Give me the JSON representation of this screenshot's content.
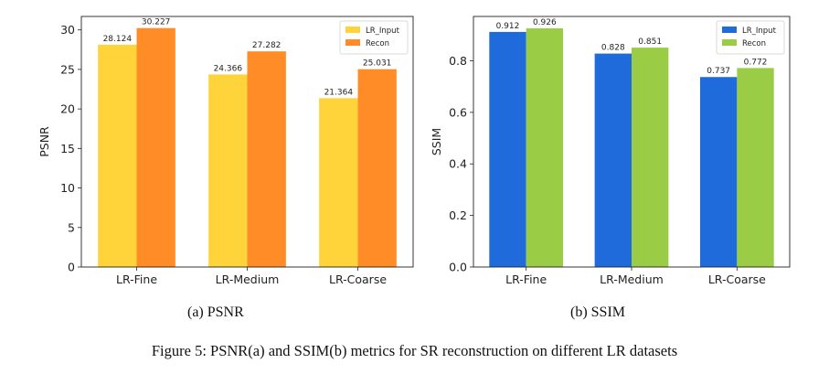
{
  "chart_data": [
    {
      "type": "bar",
      "categories": [
        "LR-Fine",
        "LR-Medium",
        "LR-Coarse"
      ],
      "series": [
        {
          "name": "LR_Input",
          "values": [
            28.124,
            24.366,
            21.364
          ],
          "labels": [
            "28.124",
            "24.366",
            "21.364"
          ],
          "color": "#FFD43B"
        },
        {
          "name": "Recon",
          "values": [
            30.227,
            27.282,
            25.031
          ],
          "labels": [
            "30.227",
            "27.282",
            "25.031"
          ],
          "color": "#FF8C26"
        }
      ],
      "ylabel": "PSNR",
      "xlabel": "",
      "ylim": [
        0,
        31.7
      ],
      "yticks": [
        0,
        5,
        10,
        15,
        20,
        25,
        30
      ],
      "ytick_labels": [
        "0",
        "5",
        "10",
        "15",
        "20",
        "25",
        "30"
      ],
      "grid": false,
      "legend": "top-right"
    },
    {
      "type": "bar",
      "categories": [
        "LR-Fine",
        "LR-Medium",
        "LR-Coarse"
      ],
      "series": [
        {
          "name": "LR_Input",
          "values": [
            0.912,
            0.828,
            0.737
          ],
          "labels": [
            "0.912",
            "0.828",
            "0.737"
          ],
          "color": "#1F6BDB"
        },
        {
          "name": "Recon",
          "values": [
            0.926,
            0.851,
            0.772
          ],
          "labels": [
            "0.926",
            "0.851",
            "0.772"
          ],
          "color": "#9ACD45"
        }
      ],
      "ylabel": "SSIM",
      "xlabel": "",
      "ylim": [
        0,
        0.972
      ],
      "yticks": [
        0,
        0.2,
        0.4,
        0.6,
        0.8
      ],
      "ytick_labels": [
        "0.0",
        "0.2",
        "0.4",
        "0.6",
        "0.8"
      ],
      "grid": false,
      "legend": "top-right"
    }
  ],
  "captions": {
    "a": "(a) PSNR",
    "b": "(b) SSIM",
    "figure": "Figure 5: PSNR(a) and SSIM(b) metrics for SR reconstruction on different LR datasets"
  }
}
